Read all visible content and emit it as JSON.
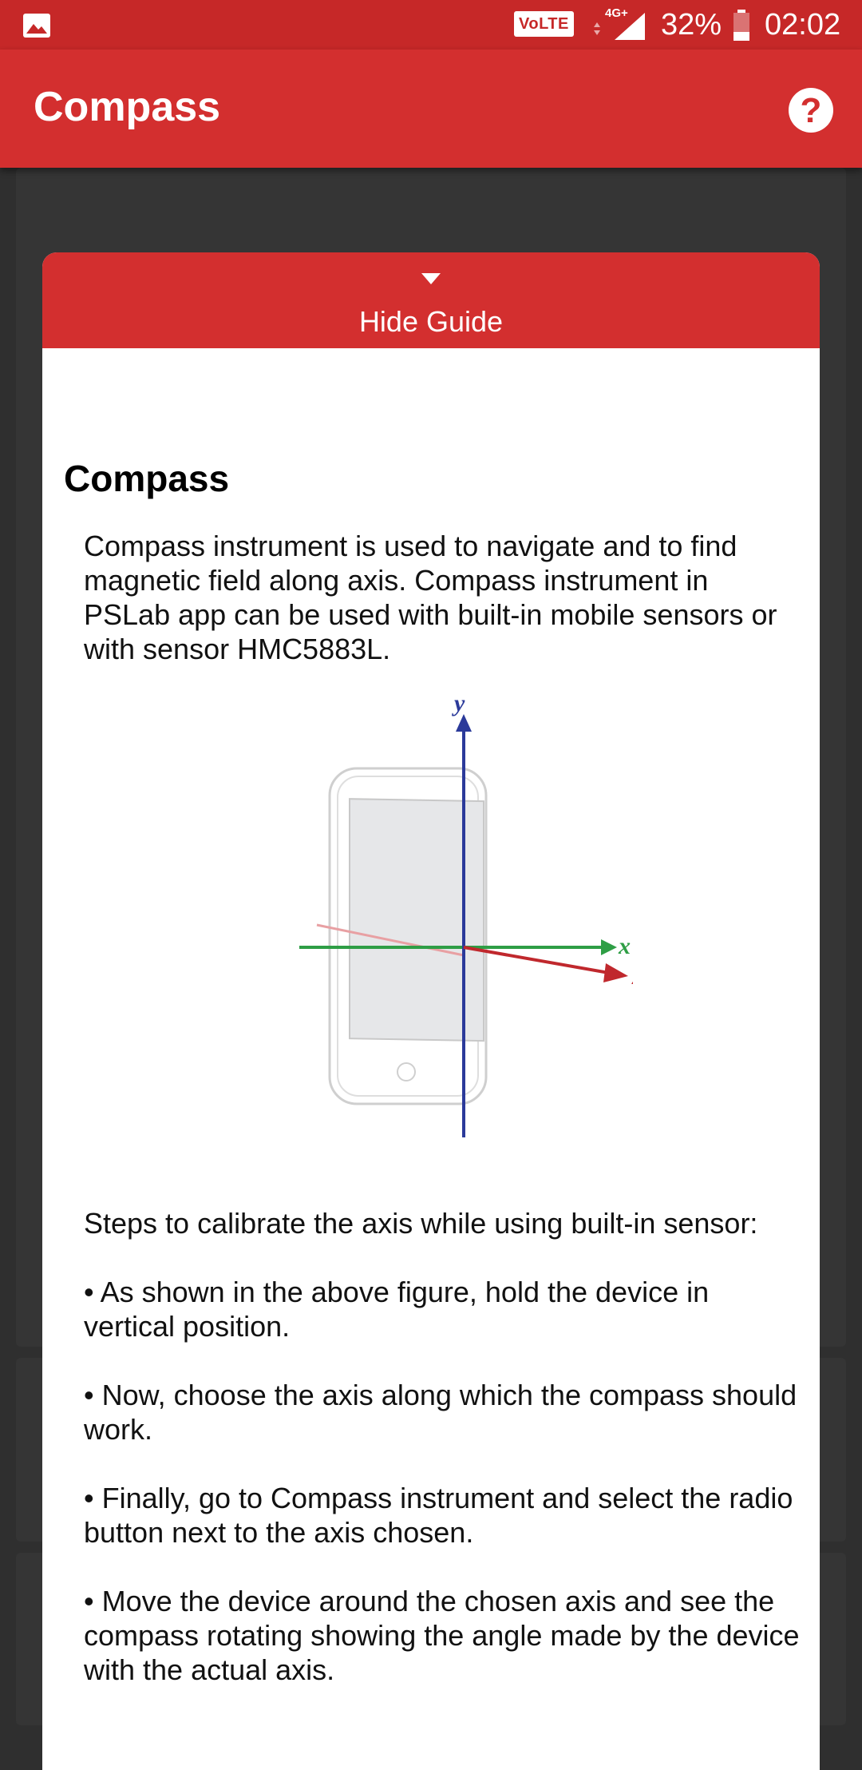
{
  "status_bar": {
    "volte": "VoLTE",
    "network": "4G+",
    "battery": "32%",
    "time": "02:02",
    "icons": [
      "gallery-icon",
      "signal-icon",
      "battery-icon"
    ]
  },
  "app_bar": {
    "title": "Compass",
    "help_icon": "?"
  },
  "guide": {
    "toggle_label": "Hide Guide",
    "title": "Compass",
    "intro": "Compass instrument is used to navigate and to find magnetic field along axis. Compass instrument in PSLab app can be used with built-in mobile sensors or with sensor HMC5883L.",
    "figure": {
      "axis_y": "y",
      "axis_x": "x",
      "axis_z": "z"
    },
    "steps_heading": "Steps to calibrate the axis while using built-in sensor:",
    "steps": [
      "• As shown in the above figure, hold the device in vertical position.",
      "• Now, choose the axis along which the compass should work.",
      "• Finally, go to Compass instrument and select the radio button next to the axis chosen.",
      "• Move the device around the chosen axis and see the compass rotating showing the angle made by the device with the actual axis."
    ]
  },
  "colors": {
    "primary": "#d32f2f",
    "status_bar": "#c62828",
    "background": "#2f2f2f",
    "axis_y": "#2b3a9a",
    "axis_x": "#2e9e45",
    "axis_z": "#c0282d"
  }
}
